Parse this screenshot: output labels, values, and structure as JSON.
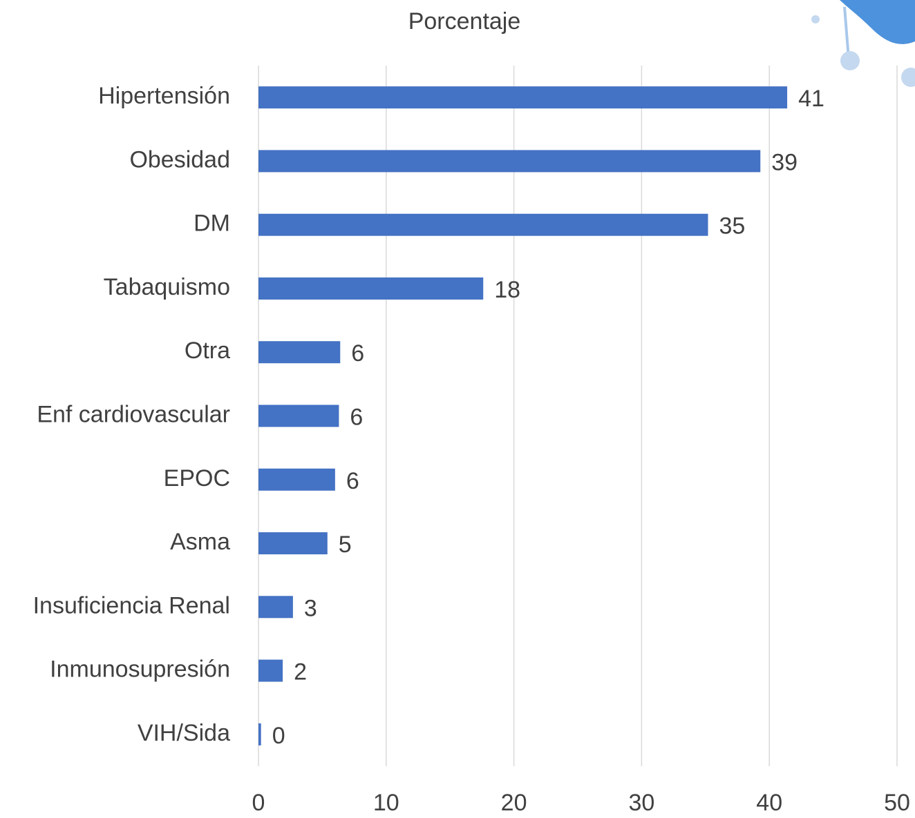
{
  "chart_data": {
    "type": "bar",
    "orientation": "horizontal",
    "title": "Porcentaje",
    "categories": [
      "Hipertensión",
      "Obesidad",
      "DM",
      "Tabaquismo",
      "Otra",
      "Enf cardiovascular",
      "EPOC",
      "Asma",
      "Insuficiencia Renal",
      "Inmunosupresión",
      "VIH/Sida"
    ],
    "values": [
      41.4,
      39.3,
      35.2,
      17.6,
      6.4,
      6.3,
      6.0,
      5.4,
      2.7,
      1.9,
      0.2
    ],
    "value_labels": [
      "41",
      "39",
      "35",
      "18",
      "6",
      "6",
      "6",
      "5",
      "3",
      "2",
      "0"
    ],
    "color": "#4472c4",
    "xlim": [
      0,
      50
    ],
    "xticks": [
      0,
      10,
      20,
      30,
      40,
      50
    ],
    "grid": true
  }
}
